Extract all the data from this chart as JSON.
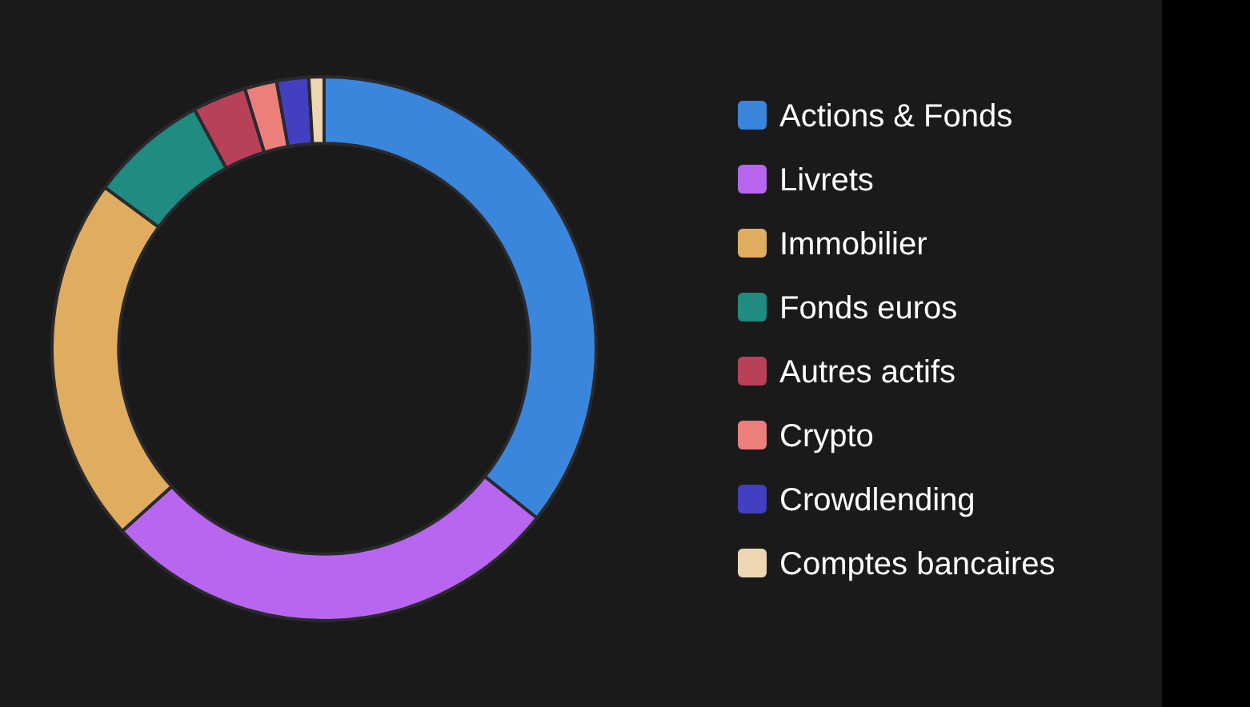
{
  "chart_data": {
    "type": "donut",
    "categories": [
      "Actions & Fonds",
      "Livrets",
      "Immobilier",
      "Fonds euros",
      "Autres actifs",
      "Crypto",
      "Crowdlending",
      "Comptes bancaires"
    ],
    "values": [
      35.7,
      27.6,
      21.8,
      7.0,
      3.2,
      1.9,
      1.9,
      0.9
    ],
    "colors": [
      "#3b86dd",
      "#b866f0",
      "#e0ad60",
      "#208b80",
      "#b84158",
      "#ec7f7a",
      "#4240c0",
      "#eed6b2"
    ],
    "legend": "right"
  }
}
